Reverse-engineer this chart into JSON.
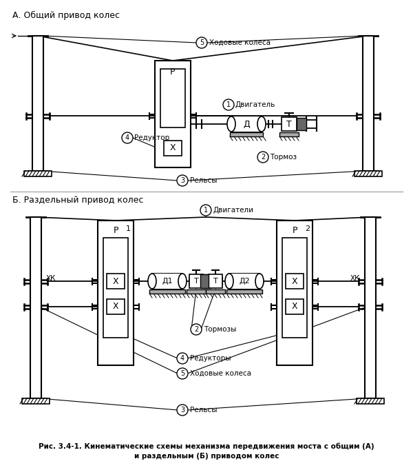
{
  "title_A": "А. Общий привод колес",
  "title_B": "Б. Раздельный привод колес",
  "caption_line1": "Рис. 3.4-1. Кинематические схемы механизма передвижения моста с общим (А)",
  "caption_line2": "и раздельным (Б) приводом колес",
  "bg_color": "#ffffff",
  "lc": "#000000",
  "gray": "#888888",
  "text_PA": "Р",
  "text_DA": "Д",
  "text_TA": "Т",
  "text_XA": "X",
  "text_1A": "Двигатель",
  "text_2A": "Тормоз",
  "text_3A": "Рельсы",
  "text_4A": "Редуктор",
  "text_5A": "Ходовые колеса",
  "text_PB": "Р",
  "text_D1B": "Д1",
  "text_D2B": "Д2",
  "text_T1B": "Т",
  "text_T2B": "Т",
  "text_XB": "X",
  "text_XK": "ХК",
  "text_1B": "Двигатели",
  "text_2B": "Тормозы",
  "text_3B": "Рельсы",
  "text_4B": "Редукторы",
  "text_5B": "Ходовые колеса"
}
